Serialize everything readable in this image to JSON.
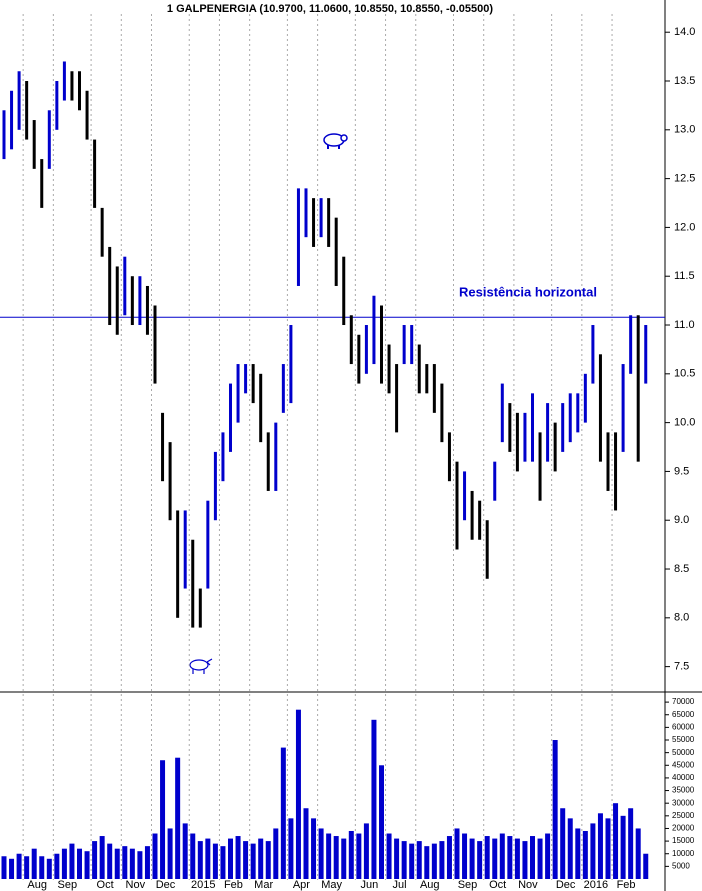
{
  "chart_data": {
    "type": "ohlc",
    "title": "1 GALPENERGIA (10.9700, 11.0600, 10.8550, 10.8550, -0.05500)",
    "categories": [
      null,
      null,
      null,
      "Aug",
      null,
      null,
      null,
      "Sep",
      null,
      null,
      null,
      null,
      "Oct",
      null,
      null,
      null,
      "Nov",
      null,
      null,
      null,
      "Dec",
      null,
      null,
      null,
      null,
      "2015",
      null,
      null,
      null,
      "Feb",
      null,
      null,
      null,
      "Mar",
      null,
      null,
      null,
      null,
      "Apr",
      null,
      null,
      null,
      "May",
      null,
      null,
      null,
      null,
      "Jun",
      null,
      null,
      null,
      "Jul",
      null,
      null,
      null,
      "Aug",
      null,
      null,
      null,
      null,
      "Sep",
      null,
      null,
      null,
      "Oct",
      null,
      null,
      null,
      "Nov",
      null,
      null,
      null,
      null,
      "Dec",
      null,
      null,
      null,
      "2016",
      null,
      null,
      null,
      "Feb",
      null,
      null,
      null,
      null
    ],
    "high": [
      13.2,
      13.4,
      13.6,
      13.5,
      13.1,
      12.7,
      13.2,
      13.5,
      13.7,
      13.6,
      13.6,
      13.4,
      12.9,
      12.2,
      11.8,
      11.6,
      11.7,
      11.5,
      11.5,
      11.4,
      11.2,
      10.1,
      9.8,
      9.1,
      9.1,
      8.8,
      8.3,
      9.2,
      9.7,
      9.9,
      10.4,
      10.6,
      10.6,
      10.6,
      10.5,
      9.9,
      10.0,
      10.6,
      11.0,
      12.4,
      12.4,
      12.3,
      12.3,
      12.3,
      12.1,
      11.7,
      11.1,
      10.9,
      11.0,
      11.3,
      11.2,
      10.8,
      10.6,
      11.0,
      11.0,
      10.8,
      10.6,
      10.6,
      10.4,
      9.9,
      9.6,
      9.5,
      9.3,
      9.2,
      9.0,
      9.6,
      10.4,
      10.2,
      10.1,
      10.1,
      10.3,
      9.9,
      10.2,
      10.0,
      10.2,
      10.3,
      10.3,
      10.5,
      11.0,
      10.7,
      9.9,
      9.9,
      10.6,
      11.1,
      11.1,
      11.0
    ],
    "low": [
      12.7,
      12.8,
      13.0,
      12.9,
      12.6,
      12.2,
      12.6,
      13.0,
      13.3,
      13.3,
      13.2,
      12.9,
      12.2,
      11.7,
      11.0,
      10.9,
      11.1,
      11.0,
      11.0,
      10.9,
      10.4,
      9.4,
      9.0,
      8.0,
      8.3,
      7.9,
      7.9,
      8.3,
      9.0,
      9.4,
      9.7,
      10.0,
      10.3,
      10.2,
      9.8,
      9.3,
      9.3,
      10.1,
      10.2,
      11.4,
      11.9,
      11.8,
      11.9,
      11.8,
      11.4,
      11.0,
      10.6,
      10.4,
      10.5,
      10.6,
      10.4,
      10.3,
      9.9,
      10.6,
      10.6,
      10.3,
      10.3,
      10.1,
      9.8,
      9.4,
      8.7,
      9.0,
      8.8,
      8.8,
      8.4,
      9.2,
      9.8,
      9.7,
      9.5,
      9.6,
      9.6,
      9.2,
      9.6,
      9.5,
      9.7,
      9.8,
      9.9,
      10.0,
      10.4,
      9.6,
      9.3,
      9.1,
      9.7,
      10.5,
      9.6,
      10.4
    ],
    "up_color": "#0000cc",
    "down_color": "#000000",
    "ylim": [
      7.24,
      14.33
    ],
    "yticks": [
      7.5,
      {
        "value": 8,
        "label": "8.0"
      },
      8.5,
      {
        "value": 9,
        "label": "9.0"
      },
      9.5,
      {
        "value": 10,
        "label": "10.0"
      },
      10.5,
      {
        "value": 11,
        "label": "11.0"
      },
      11.5,
      {
        "value": 12,
        "label": "12.0"
      },
      12.5,
      {
        "value": 13,
        "label": "13.0"
      },
      13.5,
      {
        "value": 14,
        "label": "14.0"
      }
    ],
    "annotations": [
      {
        "text": "Resistência horizontal",
        "value": 11.08,
        "color": "#0000cc"
      }
    ],
    "volume": {
      "color": "#0000cc",
      "values": [
        9000,
        8000,
        10000,
        9000,
        12000,
        9000,
        8000,
        10000,
        12000,
        14000,
        12000,
        11000,
        15000,
        17000,
        14000,
        12000,
        13000,
        12000,
        11000,
        13000,
        18000,
        47000,
        20000,
        48000,
        22000,
        18000,
        15000,
        16000,
        14000,
        13000,
        16000,
        17000,
        15000,
        14000,
        16000,
        15000,
        20000,
        52000,
        24000,
        67000,
        28000,
        24000,
        20000,
        18000,
        17000,
        16000,
        19000,
        18000,
        22000,
        63000,
        45000,
        18000,
        16000,
        15000,
        14000,
        15000,
        13000,
        14000,
        15000,
        17000,
        20000,
        18000,
        16000,
        15000,
        17000,
        16000,
        18000,
        17000,
        16000,
        15000,
        17000,
        16000,
        18000,
        55000,
        28000,
        24000,
        20000,
        19000,
        22000,
        26000,
        24000,
        30000,
        25000,
        28000,
        20000,
        10000
      ],
      "ylim": [
        0,
        74000
      ],
      "yticks": [
        5000,
        10000,
        15000,
        20000,
        25000,
        30000,
        35000,
        40000,
        45000,
        50000,
        55000,
        60000,
        65000,
        70000
      ]
    }
  }
}
